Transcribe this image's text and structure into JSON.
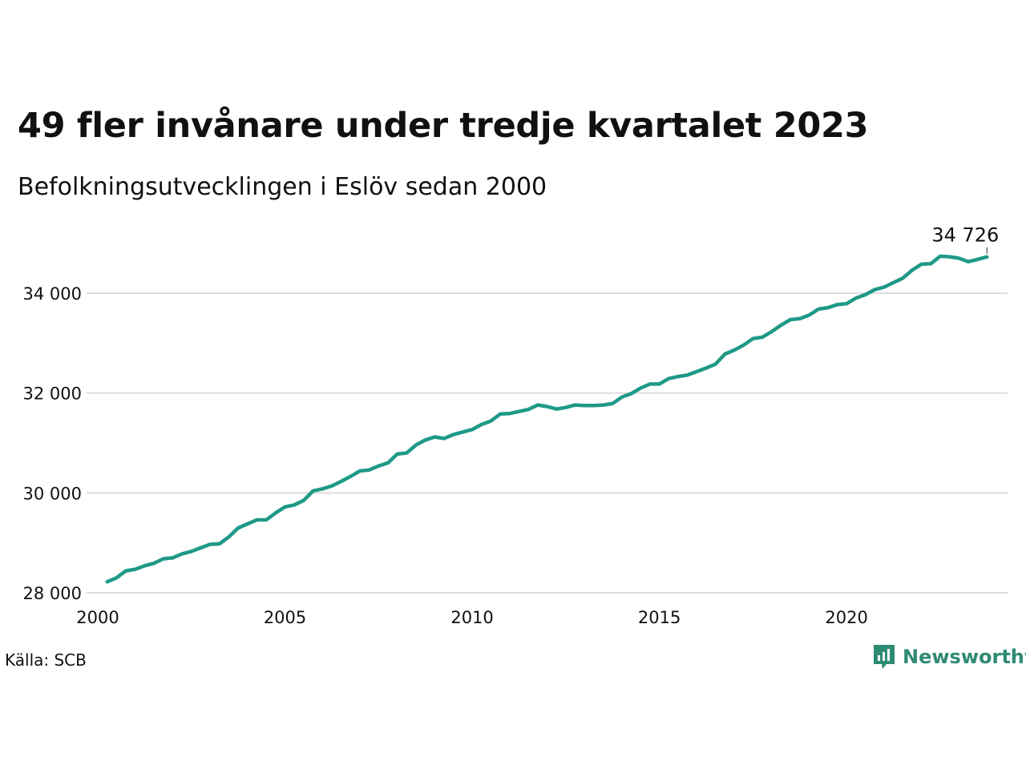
{
  "title": "49 fler invånare under tredje kvartalet 2023",
  "subtitle": "Befolkningsutvecklingen i Eslöv sedan 2000",
  "source": "Källa: SCB",
  "brand": "Newsworthy",
  "colors": {
    "line": "#1e9987",
    "grid": "#dddddd",
    "brand": "#2e8b73"
  },
  "chart_data": {
    "type": "line",
    "x_ticks": [
      "2000",
      "2005",
      "2010",
      "2015",
      "2020"
    ],
    "y_ticks": [
      {
        "value": 28000,
        "label": "28 000"
      },
      {
        "value": 30000,
        "label": "30 000"
      },
      {
        "value": 32000,
        "label": "32 000"
      },
      {
        "value": 34000,
        "label": "34 000"
      }
    ],
    "ylim": [
      28000,
      34800
    ],
    "xlim": [
      2000,
      2024.3
    ],
    "grid": true,
    "end_label": "34 726",
    "series": [
      {
        "values": [
          [
            2000.25,
            28220
          ],
          [
            2000.5,
            28300
          ],
          [
            2000.75,
            28440
          ],
          [
            2001.0,
            28470
          ],
          [
            2001.25,
            28540
          ],
          [
            2001.5,
            28590
          ],
          [
            2001.75,
            28680
          ],
          [
            2002.0,
            28700
          ],
          [
            2002.25,
            28780
          ],
          [
            2002.5,
            28830
          ],
          [
            2002.75,
            28900
          ],
          [
            2003.0,
            28970
          ],
          [
            2003.25,
            28980
          ],
          [
            2003.5,
            29120
          ],
          [
            2003.75,
            29300
          ],
          [
            2004.0,
            29380
          ],
          [
            2004.25,
            29460
          ],
          [
            2004.5,
            29460
          ],
          [
            2004.75,
            29600
          ],
          [
            2005.0,
            29720
          ],
          [
            2005.25,
            29760
          ],
          [
            2005.5,
            29850
          ],
          [
            2005.75,
            30040
          ],
          [
            2006.0,
            30080
          ],
          [
            2006.25,
            30140
          ],
          [
            2006.5,
            30230
          ],
          [
            2006.75,
            30330
          ],
          [
            2007.0,
            30440
          ],
          [
            2007.25,
            30460
          ],
          [
            2007.5,
            30540
          ],
          [
            2007.75,
            30600
          ],
          [
            2008.0,
            30780
          ],
          [
            2008.25,
            30800
          ],
          [
            2008.5,
            30960
          ],
          [
            2008.75,
            31060
          ],
          [
            2009.0,
            31120
          ],
          [
            2009.25,
            31090
          ],
          [
            2009.5,
            31170
          ],
          [
            2009.75,
            31220
          ],
          [
            2010.0,
            31270
          ],
          [
            2010.25,
            31370
          ],
          [
            2010.5,
            31440
          ],
          [
            2010.75,
            31580
          ],
          [
            2011.0,
            31590
          ],
          [
            2011.25,
            31630
          ],
          [
            2011.5,
            31670
          ],
          [
            2011.75,
            31760
          ],
          [
            2012.0,
            31730
          ],
          [
            2012.25,
            31680
          ],
          [
            2012.5,
            31710
          ],
          [
            2012.75,
            31760
          ],
          [
            2013.0,
            31750
          ],
          [
            2013.25,
            31750
          ],
          [
            2013.5,
            31760
          ],
          [
            2013.75,
            31790
          ],
          [
            2014.0,
            31920
          ],
          [
            2014.25,
            31990
          ],
          [
            2014.5,
            32100
          ],
          [
            2014.75,
            32180
          ],
          [
            2015.0,
            32180
          ],
          [
            2015.25,
            32290
          ],
          [
            2015.5,
            32330
          ],
          [
            2015.75,
            32360
          ],
          [
            2016.0,
            32430
          ],
          [
            2016.25,
            32500
          ],
          [
            2016.5,
            32580
          ],
          [
            2016.75,
            32780
          ],
          [
            2017.0,
            32860
          ],
          [
            2017.25,
            32960
          ],
          [
            2017.5,
            33090
          ],
          [
            2017.75,
            33120
          ],
          [
            2018.0,
            33230
          ],
          [
            2018.25,
            33360
          ],
          [
            2018.5,
            33470
          ],
          [
            2018.75,
            33490
          ],
          [
            2019.0,
            33560
          ],
          [
            2019.25,
            33680
          ],
          [
            2019.5,
            33710
          ],
          [
            2019.75,
            33770
          ],
          [
            2020.0,
            33790
          ],
          [
            2020.25,
            33900
          ],
          [
            2020.5,
            33970
          ],
          [
            2020.75,
            34070
          ],
          [
            2021.0,
            34120
          ],
          [
            2021.25,
            34210
          ],
          [
            2021.5,
            34300
          ],
          [
            2021.75,
            34460
          ],
          [
            2022.0,
            34580
          ],
          [
            2022.25,
            34590
          ],
          [
            2022.5,
            34740
          ],
          [
            2022.75,
            34730
          ],
          [
            2023.0,
            34700
          ],
          [
            2023.25,
            34630
          ],
          [
            2023.5,
            34677
          ],
          [
            2023.75,
            34726
          ]
        ]
      }
    ]
  }
}
